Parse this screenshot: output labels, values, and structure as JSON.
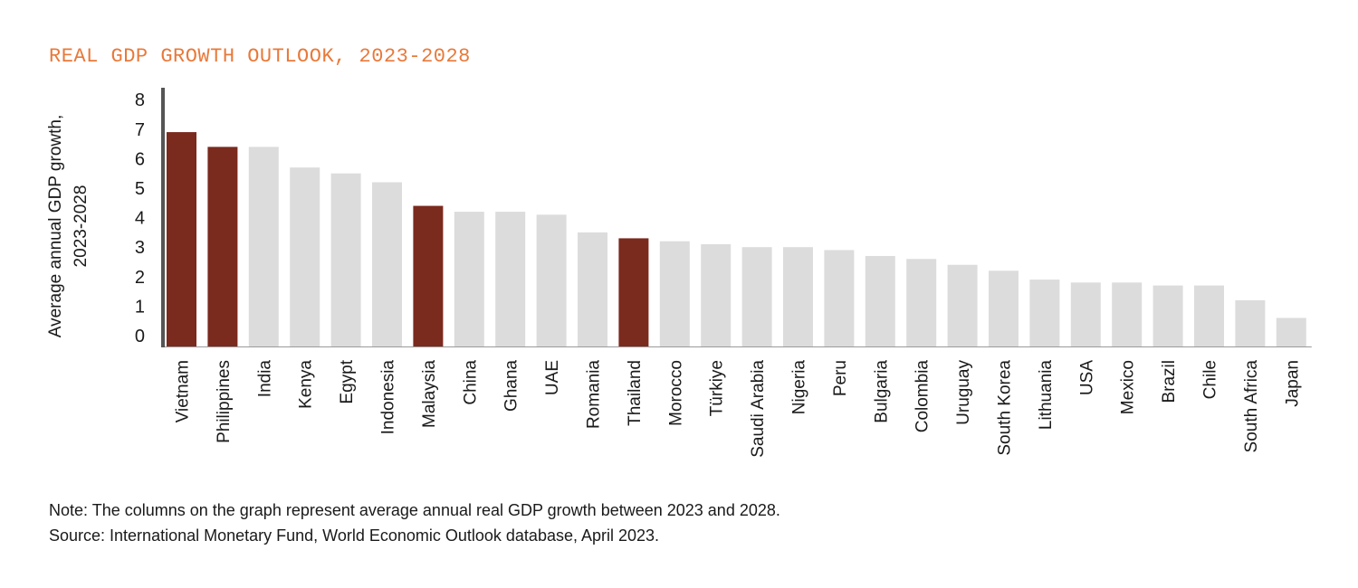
{
  "chart_data": {
    "type": "bar",
    "title": "REAL GDP GROWTH OUTLOOK, 2023-2028",
    "ylabel": [
      "Average annual GDP growth,",
      "2023-2028"
    ],
    "xlabel": "",
    "ylim": [
      0,
      8
    ],
    "yticks": [
      0,
      1,
      2,
      3,
      4,
      5,
      6,
      7,
      8
    ],
    "grid": false,
    "categories": [
      "Vietnam",
      "Philippines",
      "India",
      "Kenya",
      "Egypt",
      "Indonesia",
      "Malaysia",
      "China",
      "Ghana",
      "UAE",
      "Romania",
      "Thailand",
      "Morocco",
      "Türkiye",
      "Saudi Arabia",
      "Nigeria",
      "Peru",
      "Bulgaria",
      "Colombia",
      "Uruguay",
      "South Korea",
      "Lithuania",
      "USA",
      "Mexico",
      "Brazil",
      "Chile",
      "South Africa",
      "Japan"
    ],
    "values": [
      6.9,
      6.4,
      6.4,
      5.7,
      5.5,
      5.2,
      4.4,
      4.2,
      4.2,
      4.1,
      3.5,
      3.3,
      3.2,
      3.1,
      3.0,
      3.0,
      2.9,
      2.7,
      2.6,
      2.4,
      2.2,
      1.9,
      1.8,
      1.8,
      1.7,
      1.7,
      1.2,
      0.6
    ],
    "highlighted": [
      "Vietnam",
      "Philippines",
      "Malaysia",
      "Thailand"
    ],
    "colors": {
      "highlight": "#7b2a1e",
      "default": "#dcdcdc",
      "axis": "#555555",
      "title": "#e8793a"
    }
  },
  "notes": {
    "note": "Note: The columns on the graph represent average annual real GDP growth between 2023 and 2028.",
    "source": "Source: International Monetary Fund, World Economic Outlook database, April 2023."
  }
}
